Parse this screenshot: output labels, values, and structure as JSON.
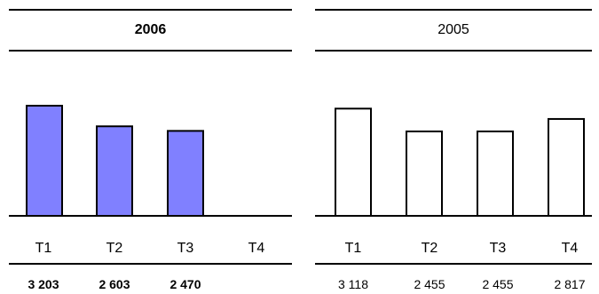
{
  "chart_data": [
    {
      "type": "bar",
      "title": "2006",
      "title_bold": true,
      "categories": [
        "T1",
        "T2",
        "T3",
        "T4"
      ],
      "values": [
        3203,
        2603,
        2470,
        null
      ],
      "value_labels": [
        "3 203",
        "2 603",
        "2 470",
        ""
      ],
      "value_labels_bold": true,
      "bar_fill": "#8080ff",
      "bar_stroke": "#000000"
    },
    {
      "type": "bar",
      "title": "2005",
      "title_bold": false,
      "categories": [
        "T1",
        "T2",
        "T3",
        "T4"
      ],
      "values": [
        3118,
        2455,
        2455,
        2817
      ],
      "value_labels": [
        "3 118",
        "2 455",
        "2 455",
        "2 817"
      ],
      "value_labels_bold": false,
      "bar_fill": "#ffffff",
      "bar_stroke": "#000000"
    }
  ]
}
